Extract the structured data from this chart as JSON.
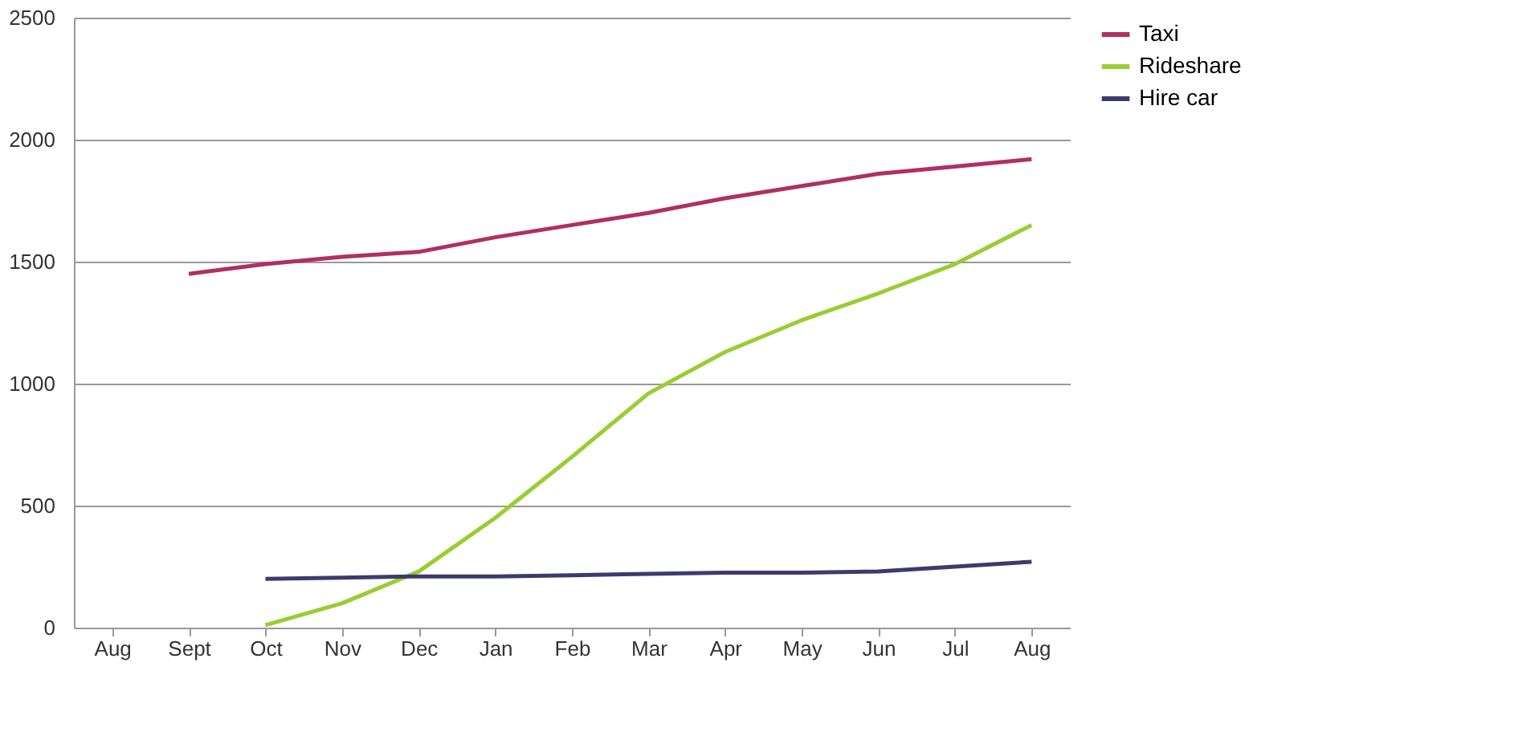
{
  "chart_data": {
    "type": "line",
    "categories": [
      "Aug",
      "Sept",
      "Oct",
      "Nov",
      "Dec",
      "Jan",
      "Feb",
      "Mar",
      "Apr",
      "May",
      "Jun",
      "Jul",
      "Aug"
    ],
    "series": [
      {
        "name": "Taxi",
        "color": "#b03060",
        "values": [
          null,
          1450,
          1490,
          1520,
          1540,
          1600,
          1650,
          1700,
          1760,
          1810,
          1860,
          1890,
          1920
        ]
      },
      {
        "name": "Rideshare",
        "color": "#9acd32",
        "values": [
          null,
          null,
          10,
          100,
          230,
          450,
          700,
          960,
          1130,
          1260,
          1370,
          1490,
          1650
        ]
      },
      {
        "name": "Hire car",
        "color": "#3b3b6e",
        "values": [
          null,
          null,
          200,
          205,
          210,
          210,
          215,
          220,
          225,
          225,
          230,
          250,
          270
        ]
      }
    ],
    "ylim": [
      0,
      2500
    ],
    "yticks": [
      0,
      500,
      1000,
      1500,
      2000,
      2500
    ],
    "grid": "y",
    "legend": "right",
    "marker": "none",
    "line_style": "solid"
  }
}
